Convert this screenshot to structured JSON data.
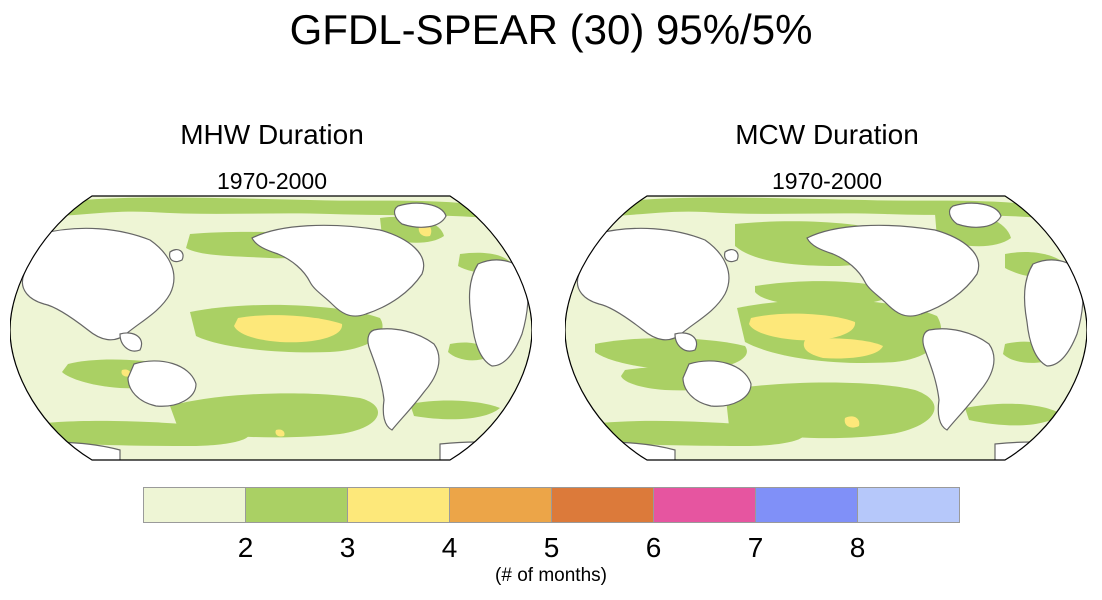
{
  "title": "GFDL-SPEAR (30) 95%/5%",
  "panels": [
    {
      "id": "mhw",
      "title": "MHW Duration",
      "subtitle": "1970-2000"
    },
    {
      "id": "mcw",
      "title": "MCW Duration",
      "subtitle": "1970-2000"
    }
  ],
  "colorbar": {
    "label": "(# of months)",
    "ticks": [
      "2",
      "3",
      "4",
      "5",
      "6",
      "7",
      "8"
    ],
    "colors": [
      "#eef5d5",
      "#aad064",
      "#fde87a",
      "#eca548",
      "#dc7a3a",
      "#e655a0",
      "#8090f8",
      "#b6c8fa"
    ]
  },
  "chart_data": [
    {
      "type": "heatmap",
      "title": "MHW Duration",
      "subtitle": "1970-2000",
      "projection": "Robinson (Pacific-centered)",
      "levels": [
        2,
        3,
        4,
        5,
        6,
        7,
        8
      ],
      "units": "(# of months)",
      "dominant_ranges": [
        "<2",
        "2-3",
        "3-4"
      ]
    },
    {
      "type": "heatmap",
      "title": "MCW Duration",
      "subtitle": "1970-2000",
      "projection": "Robinson (Pacific-centered)",
      "levels": [
        2,
        3,
        4,
        5,
        6,
        7,
        8
      ],
      "units": "(# of months)",
      "dominant_ranges": [
        "<2",
        "2-3",
        "3-4"
      ]
    }
  ]
}
